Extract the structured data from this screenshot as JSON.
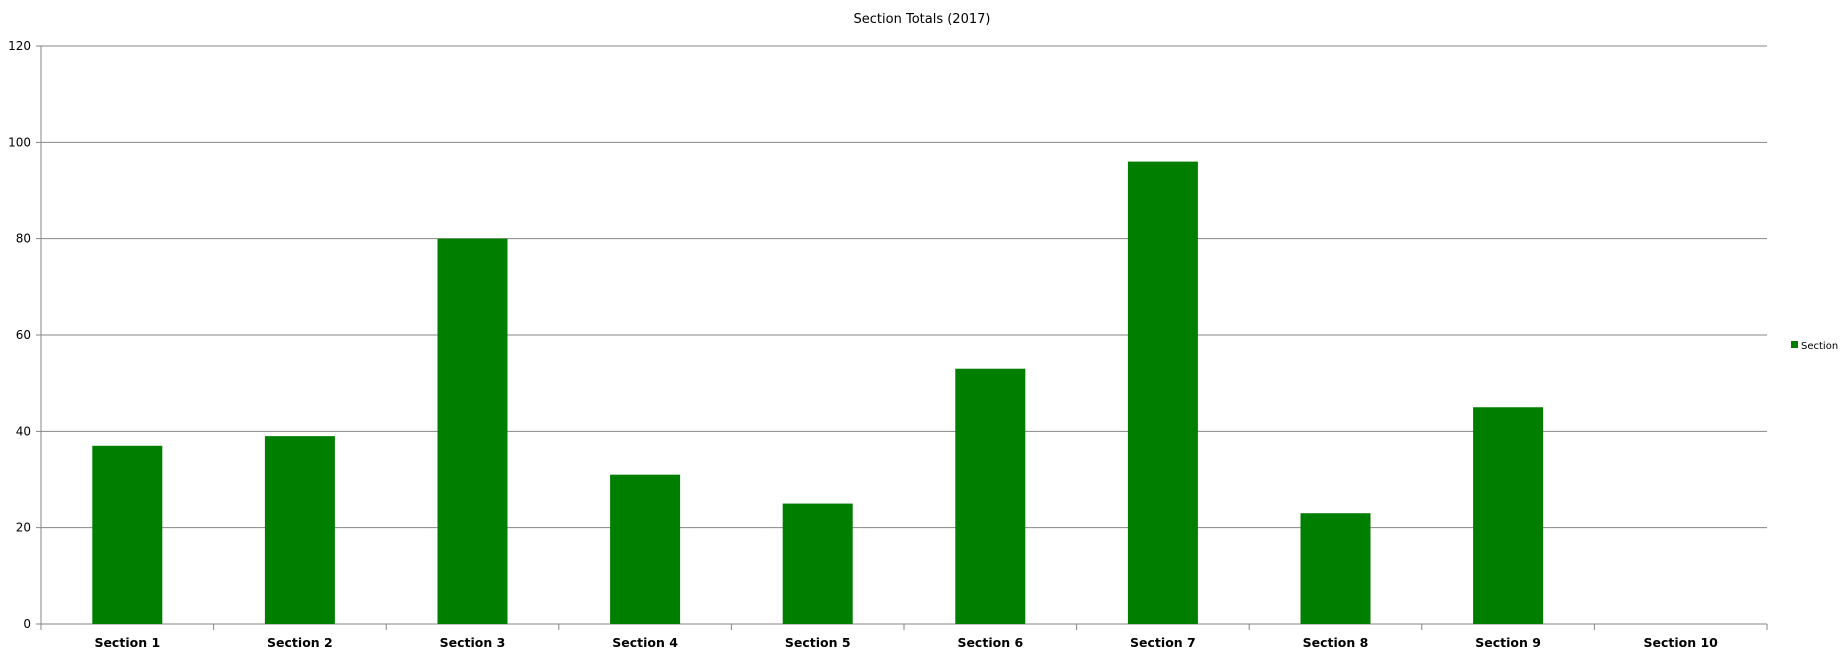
{
  "chart_data": {
    "type": "bar",
    "title": "Section Totals (2017)",
    "categories": [
      "Section 1",
      "Section 2",
      "Section 3",
      "Section 4",
      "Section 5",
      "Section 6",
      "Section 7",
      "Section 8",
      "Section 9",
      "Section 10"
    ],
    "series": [
      {
        "name": "Section",
        "color": "#007e00",
        "values": [
          37,
          39,
          80,
          31,
          25,
          53,
          96,
          23,
          45,
          0
        ]
      }
    ],
    "xlabel": "",
    "ylabel": "",
    "ylim": [
      0,
      120
    ],
    "yticks": [
      0,
      20,
      40,
      60,
      80,
      100,
      120
    ],
    "grid": true,
    "legend": "right"
  }
}
